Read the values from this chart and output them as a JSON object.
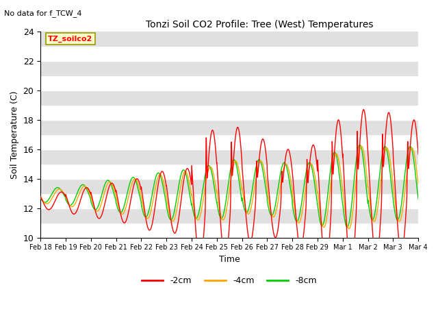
{
  "title": "Tonzi Soil CO2 Profile: Tree (West) Temperatures",
  "no_data_label": "No data for f_TCW_4",
  "xlabel": "Time",
  "ylabel": "Soil Temperature (C)",
  "ylim": [
    10,
    24
  ],
  "x_tick_labels": [
    "Feb 18",
    "Feb 19",
    "Feb 20",
    "Feb 21",
    "Feb 22",
    "Feb 23",
    "Feb 24",
    "Feb 25",
    "Feb 26",
    "Feb 27",
    "Feb 28",
    "Feb 29",
    "Mar 1",
    "Mar 2",
    "Mar 3",
    "Mar 4"
  ],
  "colors": {
    "-2cm": "#ff0000",
    "-4cm": "#ffa500",
    "-8cm": "#00cc00"
  },
  "annotation_box": "TZ_soilco2",
  "num_points_per_day": 144,
  "num_days": 15,
  "base_temp_2cm": [
    12.5,
    12.5,
    12.5,
    12.5,
    12.5,
    12.5,
    12.8,
    13.0,
    13.2,
    13.0,
    12.8,
    13.0,
    13.2,
    13.5,
    13.5
  ],
  "base_temp_4cm": [
    12.8,
    12.8,
    12.8,
    12.8,
    12.8,
    12.8,
    13.0,
    13.2,
    13.4,
    13.2,
    13.0,
    13.2,
    13.4,
    13.6,
    13.6
  ],
  "base_temp_8cm": [
    12.9,
    12.9,
    12.9,
    12.9,
    12.9,
    12.9,
    13.1,
    13.3,
    13.5,
    13.3,
    13.1,
    13.3,
    13.5,
    13.7,
    13.7
  ],
  "amp_2cm": [
    0.6,
    0.9,
    1.2,
    1.5,
    2.0,
    2.2,
    4.5,
    4.5,
    3.5,
    3.0,
    3.5,
    5.0,
    5.5,
    5.0,
    4.5
  ],
  "amp_4cm": [
    0.5,
    0.7,
    1.0,
    1.2,
    1.5,
    1.7,
    1.8,
    2.0,
    1.8,
    1.8,
    2.0,
    2.5,
    2.8,
    2.5,
    2.5
  ],
  "amp_8cm": [
    0.5,
    0.7,
    1.0,
    1.2,
    1.5,
    1.7,
    1.8,
    2.0,
    1.8,
    1.8,
    2.0,
    2.5,
    2.8,
    2.5,
    2.5
  ],
  "phase_2cm": 0.0,
  "phase_4cm": 0.08,
  "phase_8cm": 0.15,
  "spike_extra_2cm": [
    0.0,
    0.0,
    0.0,
    0.0,
    0.0,
    0.0,
    4.0,
    3.5,
    2.0,
    1.5,
    2.5,
    3.5,
    4.0,
    3.5,
    3.0
  ],
  "peak_time": 0.58,
  "band_colors": [
    "#ffffff",
    "#e0e0e0"
  ]
}
